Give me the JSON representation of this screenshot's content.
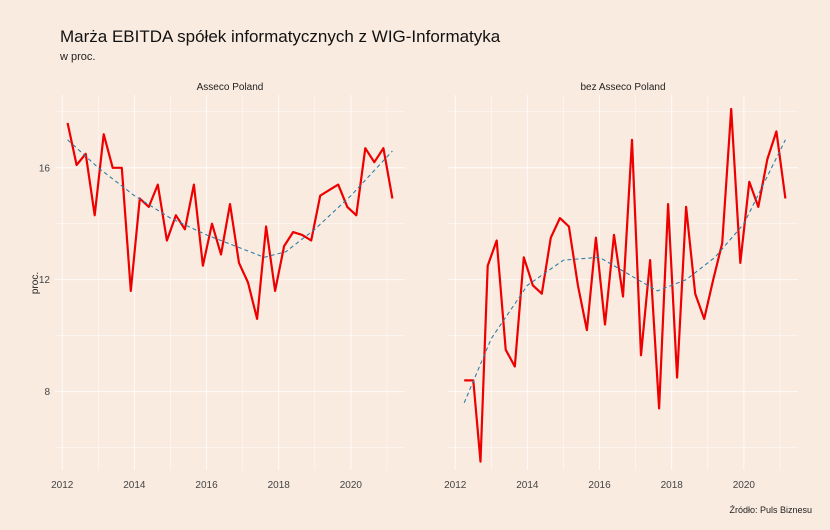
{
  "title": "Marża EBITDA spółek informatycznych z WIG-Informatyka",
  "subtitle": "w proc.",
  "caption": "Źródło: Puls Biznesu",
  "chart_data": {
    "type": "line",
    "ylabel": "proc.",
    "xlabel": "",
    "xlim": [
      2011.8,
      2021.5
    ],
    "ylim": [
      5.2,
      18.6
    ],
    "x_ticks": [
      2012,
      2014,
      2016,
      2018,
      2020
    ],
    "y_ticks": [
      8,
      12,
      16
    ],
    "grid": true,
    "colors": {
      "series": "#ee0000",
      "trend": "#2f7ea8"
    },
    "panels": [
      {
        "name": "Asseco Poland",
        "series": [
          {
            "name": "",
            "style": "solid",
            "x": [
              2012.15,
              2012.4,
              2012.65,
              2012.9,
              2013.15,
              2013.4,
              2013.65,
              2013.9,
              2014.15,
              2014.4,
              2014.65,
              2014.9,
              2015.15,
              2015.4,
              2015.65,
              2015.9,
              2016.15,
              2016.4,
              2016.65,
              2016.9,
              2017.15,
              2017.4,
              2017.65,
              2017.9,
              2018.15,
              2018.4,
              2018.65,
              2018.9,
              2019.15,
              2019.4,
              2019.65,
              2019.9,
              2020.15,
              2020.4,
              2020.65,
              2020.9,
              2021.15
            ],
            "y": [
              17.6,
              16.1,
              16.5,
              14.3,
              17.2,
              16.0,
              16.0,
              11.6,
              14.9,
              14.6,
              15.4,
              13.4,
              14.3,
              13.8,
              15.4,
              12.5,
              14.0,
              12.9,
              14.7,
              12.6,
              11.9,
              10.6,
              13.9,
              11.6,
              13.2,
              13.7,
              13.6,
              13.4,
              15.0,
              15.2,
              15.4,
              14.6,
              14.3,
              16.7,
              16.2,
              16.7,
              14.9
            ]
          },
          {
            "name": "",
            "style": "dashed",
            "x": [
              2012.15,
              2013.0,
              2014.0,
              2015.0,
              2016.0,
              2016.8,
              2017.6,
              2018.2,
              2019.0,
              2020.0,
              2021.15
            ],
            "y": [
              17.0,
              16.0,
              15.0,
              14.2,
              13.6,
              13.2,
              12.8,
              13.0,
              13.8,
              15.0,
              16.6
            ]
          }
        ]
      },
      {
        "name": "bez Asseco Poland",
        "series": [
          {
            "name": "",
            "style": "solid",
            "x": [
              2012.25,
              2012.5,
              2012.7,
              2012.9,
              2013.15,
              2013.4,
              2013.65,
              2013.9,
              2014.15,
              2014.4,
              2014.65,
              2014.9,
              2015.15,
              2015.4,
              2015.65,
              2015.9,
              2016.15,
              2016.4,
              2016.65,
              2016.9,
              2017.15,
              2017.4,
              2017.65,
              2017.9,
              2018.15,
              2018.4,
              2018.65,
              2018.9,
              2019.15,
              2019.4,
              2019.65,
              2019.9,
              2020.15,
              2020.4,
              2020.65,
              2020.9,
              2021.15
            ],
            "y": [
              8.4,
              8.4,
              5.5,
              12.5,
              13.4,
              9.5,
              8.9,
              12.8,
              11.8,
              11.5,
              13.5,
              14.2,
              13.9,
              11.8,
              10.2,
              13.5,
              10.4,
              13.6,
              11.4,
              17.0,
              9.3,
              12.7,
              7.4,
              14.7,
              8.5,
              14.6,
              11.5,
              10.6,
              12.0,
              13.3,
              18.1,
              12.6,
              15.5,
              14.6,
              16.3,
              17.3,
              14.9
            ]
          },
          {
            "name": "",
            "style": "dashed",
            "x": [
              2012.25,
              2013.0,
              2014.0,
              2015.0,
              2016.0,
              2016.8,
              2017.6,
              2018.4,
              2019.2,
              2020.0,
              2021.15
            ],
            "y": [
              7.6,
              9.9,
              11.8,
              12.7,
              12.8,
              12.2,
              11.6,
              12.0,
              12.8,
              14.0,
              17.0
            ]
          }
        ]
      }
    ]
  }
}
